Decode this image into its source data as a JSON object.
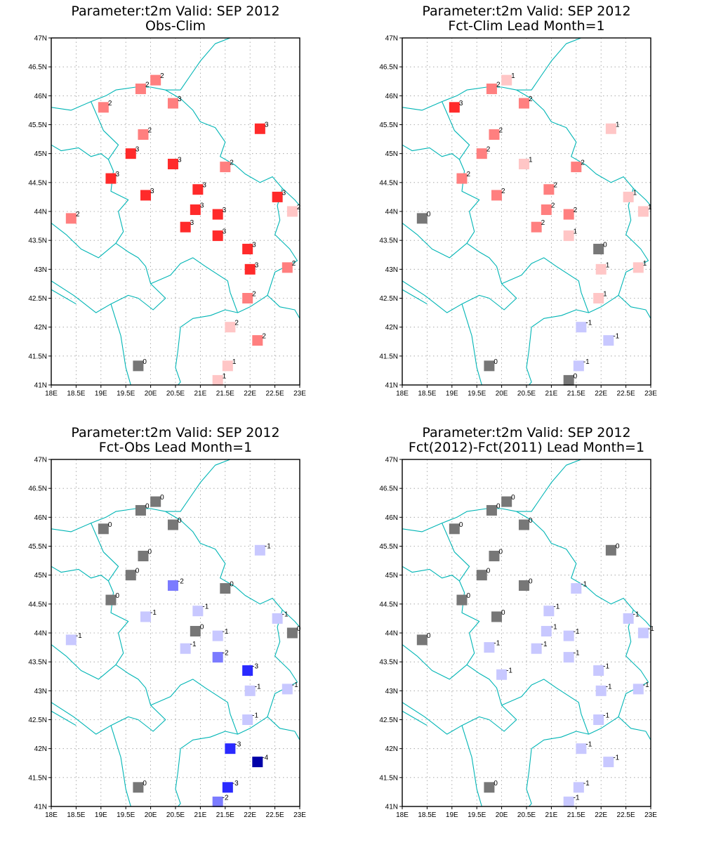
{
  "chart_data": [
    {
      "type": "scatter",
      "title": "Parameter:t2m Valid: SEP 2012",
      "subtitle": "Obs-Clim",
      "xlim": [
        18,
        23
      ],
      "ylim": [
        41,
        47
      ],
      "xticks": [
        "18E",
        "18.5E",
        "19E",
        "19.5E",
        "20E",
        "20.5E",
        "21E",
        "21.5E",
        "22E",
        "22.5E",
        "23E"
      ],
      "yticks": [
        "41N",
        "41.5N",
        "42N",
        "42.5N",
        "43N",
        "43.5N",
        "44N",
        "44.5N",
        "45N",
        "45.5N",
        "46N",
        "46.5N",
        "47N"
      ],
      "grid": true,
      "points": [
        {
          "lon": 20.1,
          "lat": 46.27,
          "value": "2",
          "color": "#ff7f7f"
        },
        {
          "lon": 19.8,
          "lat": 46.12,
          "value": "2",
          "color": "#ff7f7f"
        },
        {
          "lon": 19.05,
          "lat": 45.8,
          "value": "2",
          "color": "#ff7f7f"
        },
        {
          "lon": 20.45,
          "lat": 45.87,
          "value": "3",
          "color": "#ff7f7f"
        },
        {
          "lon": 22.2,
          "lat": 45.43,
          "value": "3",
          "color": "#ff2a2a"
        },
        {
          "lon": 19.85,
          "lat": 45.33,
          "value": "2",
          "color": "#ff7f7f"
        },
        {
          "lon": 19.6,
          "lat": 45.0,
          "value": "3",
          "color": "#ff2a2a"
        },
        {
          "lon": 20.45,
          "lat": 44.82,
          "value": "3",
          "color": "#ff2a2a"
        },
        {
          "lon": 21.5,
          "lat": 44.77,
          "value": "2",
          "color": "#ff7f7f"
        },
        {
          "lon": 19.2,
          "lat": 44.57,
          "value": "3",
          "color": "#ff2a2a"
        },
        {
          "lon": 20.95,
          "lat": 44.38,
          "value": "3",
          "color": "#ff2a2a"
        },
        {
          "lon": 19.9,
          "lat": 44.28,
          "value": "3",
          "color": "#ff2a2a"
        },
        {
          "lon": 22.55,
          "lat": 44.25,
          "value": "3",
          "color": "#ff2a2a"
        },
        {
          "lon": 20.9,
          "lat": 44.03,
          "value": "3",
          "color": "#ff2a2a"
        },
        {
          "lon": 21.35,
          "lat": 43.95,
          "value": "3",
          "color": "#ff2a2a"
        },
        {
          "lon": 22.85,
          "lat": 44.0,
          "value": "2",
          "color": "#ffc6c6"
        },
        {
          "lon": 18.4,
          "lat": 43.88,
          "value": "2",
          "color": "#ff7f7f"
        },
        {
          "lon": 20.7,
          "lat": 43.73,
          "value": "3",
          "color": "#ff2a2a"
        },
        {
          "lon": 21.35,
          "lat": 43.58,
          "value": "3",
          "color": "#ff2a2a"
        },
        {
          "lon": 21.95,
          "lat": 43.35,
          "value": "3",
          "color": "#ff2a2a"
        },
        {
          "lon": 22.0,
          "lat": 43.0,
          "value": "3",
          "color": "#ff2a2a"
        },
        {
          "lon": 22.75,
          "lat": 43.03,
          "value": "2",
          "color": "#ff7f7f"
        },
        {
          "lon": 21.95,
          "lat": 42.5,
          "value": "2",
          "color": "#ff7f7f"
        },
        {
          "lon": 21.6,
          "lat": 42.0,
          "value": "2",
          "color": "#ffc6c6"
        },
        {
          "lon": 22.15,
          "lat": 41.77,
          "value": "2",
          "color": "#ff7f7f"
        },
        {
          "lon": 19.75,
          "lat": 41.33,
          "value": "0",
          "color": "#777777"
        },
        {
          "lon": 21.55,
          "lat": 41.33,
          "value": "1",
          "color": "#ffc6c6"
        },
        {
          "lon": 21.35,
          "lat": 41.08,
          "value": "1",
          "color": "#ffc6c6"
        }
      ]
    },
    {
      "type": "scatter",
      "title": "Parameter:t2m Valid: SEP 2012",
      "subtitle": "Fct-Clim Lead Month=1",
      "xlim": [
        18,
        23
      ],
      "ylim": [
        41,
        47
      ],
      "xticks": [
        "18E",
        "18.5E",
        "19E",
        "19.5E",
        "20E",
        "20.5E",
        "21E",
        "21.5E",
        "22E",
        "22.5E",
        "23E"
      ],
      "yticks": [
        "41N",
        "41.5N",
        "42N",
        "42.5N",
        "43N",
        "43.5N",
        "44N",
        "44.5N",
        "45N",
        "45.5N",
        "46N",
        "46.5N",
        "47N"
      ],
      "grid": true,
      "points": [
        {
          "lon": 20.1,
          "lat": 46.27,
          "value": "1",
          "color": "#ffc6c6"
        },
        {
          "lon": 19.8,
          "lat": 46.12,
          "value": "2",
          "color": "#ff7f7f"
        },
        {
          "lon": 19.05,
          "lat": 45.8,
          "value": "3",
          "color": "#ff2a2a"
        },
        {
          "lon": 20.45,
          "lat": 45.87,
          "value": "2",
          "color": "#ff7f7f"
        },
        {
          "lon": 22.2,
          "lat": 45.43,
          "value": "1",
          "color": "#ffc6c6"
        },
        {
          "lon": 19.85,
          "lat": 45.33,
          "value": "2",
          "color": "#ff7f7f"
        },
        {
          "lon": 19.6,
          "lat": 45.0,
          "value": "2",
          "color": "#ff7f7f"
        },
        {
          "lon": 20.45,
          "lat": 44.82,
          "value": "1",
          "color": "#ffc6c6"
        },
        {
          "lon": 21.5,
          "lat": 44.77,
          "value": "2",
          "color": "#ff7f7f"
        },
        {
          "lon": 19.2,
          "lat": 44.57,
          "value": "2",
          "color": "#ff7f7f"
        },
        {
          "lon": 20.95,
          "lat": 44.38,
          "value": "2",
          "color": "#ff7f7f"
        },
        {
          "lon": 19.9,
          "lat": 44.28,
          "value": "2",
          "color": "#ff7f7f"
        },
        {
          "lon": 22.55,
          "lat": 44.25,
          "value": "1",
          "color": "#ffc6c6"
        },
        {
          "lon": 20.9,
          "lat": 44.03,
          "value": "2",
          "color": "#ff7f7f"
        },
        {
          "lon": 21.35,
          "lat": 43.95,
          "value": "2",
          "color": "#ff7f7f"
        },
        {
          "lon": 22.85,
          "lat": 44.0,
          "value": "1",
          "color": "#ffc6c6"
        },
        {
          "lon": 18.4,
          "lat": 43.88,
          "value": "0",
          "color": "#777777"
        },
        {
          "lon": 20.7,
          "lat": 43.73,
          "value": "2",
          "color": "#ff7f7f"
        },
        {
          "lon": 21.35,
          "lat": 43.58,
          "value": "1",
          "color": "#ffc6c6"
        },
        {
          "lon": 21.95,
          "lat": 43.35,
          "value": "0",
          "color": "#777777"
        },
        {
          "lon": 22.0,
          "lat": 43.0,
          "value": "1",
          "color": "#ffc6c6"
        },
        {
          "lon": 22.75,
          "lat": 43.03,
          "value": "1",
          "color": "#ffc6c6"
        },
        {
          "lon": 21.95,
          "lat": 42.5,
          "value": "1",
          "color": "#ffc6c6"
        },
        {
          "lon": 21.6,
          "lat": 42.0,
          "value": "-1",
          "color": "#c8c8ff"
        },
        {
          "lon": 22.15,
          "lat": 41.77,
          "value": "-1",
          "color": "#c8c8ff"
        },
        {
          "lon": 19.75,
          "lat": 41.33,
          "value": "0",
          "color": "#777777"
        },
        {
          "lon": 21.55,
          "lat": 41.33,
          "value": "-1",
          "color": "#c8c8ff"
        },
        {
          "lon": 21.35,
          "lat": 41.08,
          "value": "0",
          "color": "#777777"
        }
      ]
    },
    {
      "type": "scatter",
      "title": "Parameter:t2m Valid: SEP 2012",
      "subtitle": "Fct-Obs Lead Month=1",
      "xlim": [
        18,
        23
      ],
      "ylim": [
        41,
        47
      ],
      "xticks": [
        "18E",
        "18.5E",
        "19E",
        "19.5E",
        "20E",
        "20.5E",
        "21E",
        "21.5E",
        "22E",
        "22.5E",
        "23E"
      ],
      "yticks": [
        "41N",
        "41.5N",
        "42N",
        "42.5N",
        "43N",
        "43.5N",
        "44N",
        "44.5N",
        "45N",
        "45.5N",
        "46N",
        "46.5N",
        "47N"
      ],
      "grid": true,
      "points": [
        {
          "lon": 20.1,
          "lat": 46.27,
          "value": "0",
          "color": "#777777"
        },
        {
          "lon": 19.8,
          "lat": 46.12,
          "value": "0",
          "color": "#777777"
        },
        {
          "lon": 19.05,
          "lat": 45.8,
          "value": "0",
          "color": "#777777"
        },
        {
          "lon": 20.45,
          "lat": 45.87,
          "value": "0",
          "color": "#777777"
        },
        {
          "lon": 22.2,
          "lat": 45.43,
          "value": "-1",
          "color": "#c8c8ff"
        },
        {
          "lon": 19.85,
          "lat": 45.33,
          "value": "0",
          "color": "#777777"
        },
        {
          "lon": 19.6,
          "lat": 45.0,
          "value": "0",
          "color": "#777777"
        },
        {
          "lon": 20.45,
          "lat": 44.82,
          "value": "-2",
          "color": "#7b7bff"
        },
        {
          "lon": 21.5,
          "lat": 44.77,
          "value": "0",
          "color": "#777777"
        },
        {
          "lon": 19.2,
          "lat": 44.57,
          "value": "0",
          "color": "#777777"
        },
        {
          "lon": 20.95,
          "lat": 44.38,
          "value": "-1",
          "color": "#c8c8ff"
        },
        {
          "lon": 19.9,
          "lat": 44.28,
          "value": "-1",
          "color": "#c8c8ff"
        },
        {
          "lon": 22.55,
          "lat": 44.25,
          "value": "-1",
          "color": "#c8c8ff"
        },
        {
          "lon": 20.9,
          "lat": 44.03,
          "value": "0",
          "color": "#777777"
        },
        {
          "lon": 21.35,
          "lat": 43.95,
          "value": "-1",
          "color": "#c8c8ff"
        },
        {
          "lon": 22.85,
          "lat": 44.0,
          "value": "0",
          "color": "#777777"
        },
        {
          "lon": 18.4,
          "lat": 43.88,
          "value": "-1",
          "color": "#c8c8ff"
        },
        {
          "lon": 20.7,
          "lat": 43.73,
          "value": "-1",
          "color": "#c8c8ff"
        },
        {
          "lon": 21.35,
          "lat": 43.58,
          "value": "-2",
          "color": "#7b7bff"
        },
        {
          "lon": 21.95,
          "lat": 43.35,
          "value": "-3",
          "color": "#2a2aff"
        },
        {
          "lon": 22.0,
          "lat": 43.0,
          "value": "-1",
          "color": "#c8c8ff"
        },
        {
          "lon": 22.75,
          "lat": 43.03,
          "value": "-1",
          "color": "#c8c8ff"
        },
        {
          "lon": 21.95,
          "lat": 42.5,
          "value": "-1",
          "color": "#c8c8ff"
        },
        {
          "lon": 21.6,
          "lat": 42.0,
          "value": "-3",
          "color": "#2a2aff"
        },
        {
          "lon": 22.15,
          "lat": 41.77,
          "value": "-4",
          "color": "#0000a8"
        },
        {
          "lon": 19.75,
          "lat": 41.33,
          "value": "0",
          "color": "#777777"
        },
        {
          "lon": 21.55,
          "lat": 41.33,
          "value": "-3",
          "color": "#2a2aff"
        },
        {
          "lon": 21.35,
          "lat": 41.08,
          "value": "-2",
          "color": "#7b7bff"
        }
      ]
    },
    {
      "type": "scatter",
      "title": "Parameter:t2m Valid: SEP 2012",
      "subtitle": "Fct(2012)-Fct(2011) Lead Month=1",
      "xlim": [
        18,
        23
      ],
      "ylim": [
        41,
        47
      ],
      "xticks": [
        "18E",
        "18.5E",
        "19E",
        "19.5E",
        "20E",
        "20.5E",
        "21E",
        "21.5E",
        "22E",
        "22.5E",
        "23E"
      ],
      "yticks": [
        "41N",
        "41.5N",
        "42N",
        "42.5N",
        "43N",
        "43.5N",
        "44N",
        "44.5N",
        "45N",
        "45.5N",
        "46N",
        "46.5N",
        "47N"
      ],
      "grid": true,
      "points": [
        {
          "lon": 20.1,
          "lat": 46.27,
          "value": "0",
          "color": "#777777"
        },
        {
          "lon": 19.8,
          "lat": 46.12,
          "value": "0",
          "color": "#777777"
        },
        {
          "lon": 19.05,
          "lat": 45.8,
          "value": "0",
          "color": "#777777"
        },
        {
          "lon": 20.45,
          "lat": 45.87,
          "value": "0",
          "color": "#777777"
        },
        {
          "lon": 22.2,
          "lat": 45.43,
          "value": "0",
          "color": "#777777"
        },
        {
          "lon": 19.85,
          "lat": 45.33,
          "value": "0",
          "color": "#777777"
        },
        {
          "lon": 19.6,
          "lat": 45.0,
          "value": "0",
          "color": "#777777"
        },
        {
          "lon": 20.45,
          "lat": 44.82,
          "value": "0",
          "color": "#777777"
        },
        {
          "lon": 21.5,
          "lat": 44.77,
          "value": "-1",
          "color": "#c8c8ff"
        },
        {
          "lon": 19.2,
          "lat": 44.57,
          "value": "0",
          "color": "#777777"
        },
        {
          "lon": 20.95,
          "lat": 44.38,
          "value": "-1",
          "color": "#c8c8ff"
        },
        {
          "lon": 19.9,
          "lat": 44.28,
          "value": "0",
          "color": "#777777"
        },
        {
          "lon": 22.55,
          "lat": 44.25,
          "value": "-1",
          "color": "#c8c8ff"
        },
        {
          "lon": 20.9,
          "lat": 44.03,
          "value": "-1",
          "color": "#c8c8ff"
        },
        {
          "lon": 21.35,
          "lat": 43.95,
          "value": "-1",
          "color": "#c8c8ff"
        },
        {
          "lon": 22.85,
          "lat": 44.0,
          "value": "-1",
          "color": "#c8c8ff"
        },
        {
          "lon": 18.4,
          "lat": 43.88,
          "value": "0",
          "color": "#777777"
        },
        {
          "lon": 19.75,
          "lat": 43.75,
          "value": "-1",
          "color": "#c8c8ff"
        },
        {
          "lon": 20.7,
          "lat": 43.73,
          "value": "-1",
          "color": "#c8c8ff"
        },
        {
          "lon": 21.35,
          "lat": 43.58,
          "value": "-1",
          "color": "#c8c8ff"
        },
        {
          "lon": 21.95,
          "lat": 43.35,
          "value": "-1",
          "color": "#c8c8ff"
        },
        {
          "lon": 20.0,
          "lat": 43.28,
          "value": "-1",
          "color": "#c8c8ff"
        },
        {
          "lon": 22.0,
          "lat": 43.0,
          "value": "-1",
          "color": "#c8c8ff"
        },
        {
          "lon": 22.75,
          "lat": 43.03,
          "value": "-1",
          "color": "#c8c8ff"
        },
        {
          "lon": 21.95,
          "lat": 42.5,
          "value": "-1",
          "color": "#c8c8ff"
        },
        {
          "lon": 21.6,
          "lat": 42.0,
          "value": "-1",
          "color": "#c8c8ff"
        },
        {
          "lon": 22.15,
          "lat": 41.77,
          "value": "-1",
          "color": "#c8c8ff"
        },
        {
          "lon": 19.75,
          "lat": 41.33,
          "value": "0",
          "color": "#777777"
        },
        {
          "lon": 21.55,
          "lat": 41.33,
          "value": "-1",
          "color": "#c8c8ff"
        },
        {
          "lon": 21.35,
          "lat": 41.08,
          "value": "-1",
          "color": "#c8c8ff"
        }
      ]
    }
  ]
}
